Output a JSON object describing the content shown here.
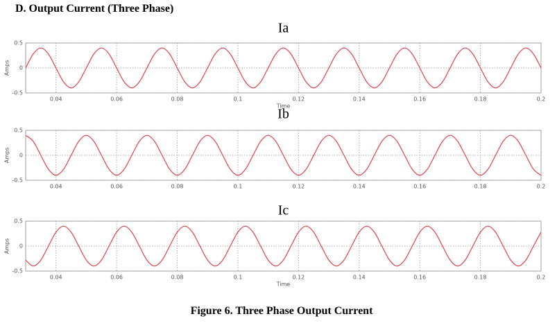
{
  "heading": "D.   Output Current (Three Phase)",
  "caption": "Figure 6. Three Phase Output Current",
  "chart_data": [
    {
      "type": "line",
      "title": "Ia",
      "x_label": "Time",
      "y_label": "Amps",
      "color": "#e0404a",
      "grid": true,
      "xlim": [
        0.03,
        0.2
      ],
      "ylim": [
        -0.5,
        0.5
      ],
      "yticks": [
        -0.5,
        0,
        0.5
      ],
      "xticks": [
        0.04,
        0.06,
        0.08,
        0.1,
        0.12,
        0.14,
        0.16,
        0.18,
        0.2
      ],
      "x": [
        0.03,
        0.0325,
        0.035,
        0.0375,
        0.04,
        0.0425,
        0.045,
        0.0475,
        0.05,
        0.0525,
        0.055,
        0.0575,
        0.06,
        0.0625,
        0.065,
        0.0675,
        0.07,
        0.0725,
        0.075,
        0.0775,
        0.08,
        0.0825,
        0.085,
        0.0875,
        0.09,
        0.0925,
        0.095,
        0.0975,
        0.1,
        0.1025,
        0.105,
        0.1075,
        0.11,
        0.1125,
        0.115,
        0.1175,
        0.12,
        0.1225,
        0.125,
        0.1275,
        0.13,
        0.1325,
        0.135,
        0.1375,
        0.14,
        0.1425,
        0.145,
        0.1475,
        0.15,
        0.1525,
        0.155,
        0.1575,
        0.16,
        0.1625,
        0.165,
        0.1675,
        0.17,
        0.1725,
        0.175,
        0.1775,
        0.18,
        0.1825,
        0.185,
        0.1875,
        0.19,
        0.1925,
        0.195,
        0.1975,
        0.2
      ],
      "values": [
        0,
        0.28,
        0.4,
        0.28,
        0,
        -0.28,
        -0.4,
        -0.28,
        0,
        0.28,
        0.4,
        0.28,
        0,
        -0.28,
        -0.4,
        -0.28,
        0,
        0.28,
        0.4,
        0.28,
        0,
        -0.28,
        -0.4,
        -0.28,
        0,
        0.28,
        0.4,
        0.28,
        0,
        -0.28,
        -0.4,
        -0.28,
        0,
        0.28,
        0.4,
        0.28,
        0,
        -0.28,
        -0.4,
        -0.28,
        0,
        0.28,
        0.4,
        0.28,
        0,
        -0.28,
        -0.4,
        -0.28,
        0,
        0.28,
        0.4,
        0.28,
        0,
        -0.28,
        -0.4,
        -0.28,
        0,
        0.28,
        0.4,
        0.28,
        0,
        -0.28,
        -0.4,
        -0.28,
        0,
        0.28,
        0.4,
        0.28,
        0
      ]
    },
    {
      "type": "line",
      "title": "Ib",
      "y_label": "Amps",
      "color": "#e0404a",
      "grid": true,
      "xlim": [
        0.03,
        0.2
      ],
      "ylim": [
        -0.5,
        0.5
      ],
      "yticks": [
        -0.5,
        0,
        0.5
      ],
      "xticks": [
        0.04,
        0.06,
        0.08,
        0.1,
        0.12,
        0.14,
        0.16,
        0.18,
        0.2
      ],
      "x": [
        0.03,
        0.0325,
        0.035,
        0.0375,
        0.04,
        0.0425,
        0.045,
        0.0475,
        0.05,
        0.0525,
        0.055,
        0.0575,
        0.06,
        0.0625,
        0.065,
        0.0675,
        0.07,
        0.0725,
        0.075,
        0.0775,
        0.08,
        0.0825,
        0.085,
        0.0875,
        0.09,
        0.0925,
        0.095,
        0.0975,
        0.1,
        0.1025,
        0.105,
        0.1075,
        0.11,
        0.1125,
        0.115,
        0.1175,
        0.12,
        0.1225,
        0.125,
        0.1275,
        0.13,
        0.1325,
        0.135,
        0.1375,
        0.14,
        0.1425,
        0.145,
        0.1475,
        0.15,
        0.1525,
        0.155,
        0.1575,
        0.16,
        0.1625,
        0.165,
        0.1675,
        0.17,
        0.1725,
        0.175,
        0.1775,
        0.18,
        0.1825,
        0.185,
        0.1875,
        0.19,
        0.1925,
        0.195,
        0.1975,
        0.2
      ],
      "values": [
        0.4,
        0.28,
        0,
        -0.28,
        -0.4,
        -0.28,
        0,
        0.28,
        0.4,
        0.28,
        0,
        -0.28,
        -0.4,
        -0.28,
        0,
        0.28,
        0.4,
        0.28,
        0,
        -0.28,
        -0.4,
        -0.28,
        0,
        0.28,
        0.4,
        0.28,
        0,
        -0.28,
        -0.4,
        -0.28,
        0,
        0.28,
        0.4,
        0.28,
        0,
        -0.28,
        -0.4,
        -0.28,
        0,
        0.28,
        0.4,
        0.28,
        0,
        -0.28,
        -0.4,
        -0.28,
        0,
        0.28,
        0.4,
        0.28,
        0,
        -0.28,
        -0.4,
        -0.28,
        0,
        0.28,
        0.4,
        0.28,
        0,
        -0.28,
        -0.4,
        -0.28,
        0,
        0.28,
        0.4,
        0.28,
        0,
        -0.28,
        -0.4
      ]
    },
    {
      "type": "line",
      "title": "Ic",
      "x_label": "Time",
      "y_label": "Amps",
      "color": "#e0404a",
      "grid": true,
      "xlim": [
        0.03,
        0.2
      ],
      "ylim": [
        -0.5,
        0.5
      ],
      "yticks": [
        -0.5,
        0,
        0.5
      ],
      "xticks": [
        0.04,
        0.06,
        0.08,
        0.1,
        0.12,
        0.14,
        0.16,
        0.18,
        0.2
      ],
      "x": [
        0.03,
        0.0325,
        0.035,
        0.0375,
        0.04,
        0.0425,
        0.045,
        0.0475,
        0.05,
        0.0525,
        0.055,
        0.0575,
        0.06,
        0.0625,
        0.065,
        0.0675,
        0.07,
        0.0725,
        0.075,
        0.0775,
        0.08,
        0.0825,
        0.085,
        0.0875,
        0.09,
        0.0925,
        0.095,
        0.0975,
        0.1,
        0.1025,
        0.105,
        0.1075,
        0.11,
        0.1125,
        0.115,
        0.1175,
        0.12,
        0.1225,
        0.125,
        0.1275,
        0.13,
        0.1325,
        0.135,
        0.1375,
        0.14,
        0.1425,
        0.145,
        0.1475,
        0.15,
        0.1525,
        0.155,
        0.1575,
        0.16,
        0.1625,
        0.165,
        0.1675,
        0.17,
        0.1725,
        0.175,
        0.1775,
        0.18,
        0.1825,
        0.185,
        0.1875,
        0.19,
        0.1925,
        0.195,
        0.1975,
        0.2
      ],
      "values": [
        -0.28,
        -0.4,
        -0.28,
        0,
        0.28,
        0.4,
        0.28,
        0,
        -0.28,
        -0.4,
        -0.28,
        0,
        0.28,
        0.4,
        0.28,
        0,
        -0.28,
        -0.4,
        -0.28,
        0,
        0.28,
        0.4,
        0.28,
        0,
        -0.28,
        -0.4,
        -0.28,
        0,
        0.28,
        0.4,
        0.28,
        0,
        -0.28,
        -0.4,
        -0.28,
        0,
        0.28,
        0.4,
        0.28,
        0,
        -0.28,
        -0.4,
        -0.28,
        0,
        0.28,
        0.4,
        0.28,
        0,
        -0.28,
        -0.4,
        -0.28,
        0,
        0.28,
        0.4,
        0.28,
        0,
        -0.28,
        -0.4,
        -0.28,
        0,
        0.28,
        0.4,
        0.28,
        0,
        -0.28,
        -0.4,
        -0.28,
        0,
        0.28
      ]
    }
  ]
}
